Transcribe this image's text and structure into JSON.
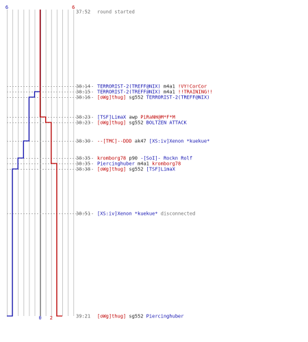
{
  "chart_data": {
    "type": "line",
    "title": "",
    "team_colors": {
      "ct": "#1010b0",
      "t": "#c00000",
      "neutral": "#202020",
      "info": "#707070"
    },
    "start_counts": {
      "ct": "6",
      "t": "6"
    },
    "end_counts": {
      "ct": "0",
      "t": "2"
    },
    "x_range": [
      0,
      10
    ],
    "ct_alive": [
      6,
      6,
      5,
      4,
      4,
      4,
      3,
      2,
      2,
      1,
      1,
      0
    ],
    "t_alive": [
      6,
      6,
      6,
      6,
      5,
      4,
      4,
      4,
      3,
      3,
      3,
      2
    ],
    "events": [
      {
        "time": "37:52",
        "segments": [
          {
            "text": "round started",
            "color": "info"
          }
        ]
      },
      {
        "time": "38:14",
        "segments": [
          {
            "text": "TERRORIST-2(TREFF@NIX)",
            "color": "ct"
          },
          {
            "text": " m4a1 ",
            "color": "neutral"
          },
          {
            "text": "!VY!CorCor",
            "color": "t"
          }
        ]
      },
      {
        "time": "38:15",
        "segments": [
          {
            "text": "TERRORIST-2(TREFF@NIX)",
            "color": "ct"
          },
          {
            "text": " m4a1 ",
            "color": "neutral"
          },
          {
            "text": "!!TRAINING!!",
            "color": "t"
          }
        ]
      },
      {
        "time": "38:16",
        "segments": [
          {
            "text": "[oWg]thug]",
            "color": "t"
          },
          {
            "text": " sg552 ",
            "color": "neutral"
          },
          {
            "text": "TERRORIST-2(TREFF@NIX)",
            "color": "ct"
          }
        ]
      },
      {
        "time": "38:23",
        "segments": [
          {
            "text": "[TSF]LimaX",
            "color": "ct"
          },
          {
            "text": " awp ",
            "color": "neutral"
          },
          {
            "text": "PiRaNH@M*F*M",
            "color": "t"
          }
        ]
      },
      {
        "time": "38:23",
        "segments": [
          {
            "text": "[oWg]thug]",
            "color": "t"
          },
          {
            "text": " sg552 ",
            "color": "neutral"
          },
          {
            "text": "BOLTZEN ATTACK",
            "color": "ct"
          }
        ]
      },
      {
        "time": "38:30",
        "segments": [
          {
            "text": "--[TMC]--DDD",
            "color": "t"
          },
          {
            "text": " ak47 ",
            "color": "neutral"
          },
          {
            "text": "[XS:iv]Xenon *kuekue*",
            "color": "ct"
          }
        ]
      },
      {
        "time": "38:35",
        "segments": [
          {
            "text": "kromborg78",
            "color": "t"
          },
          {
            "text": " p90 ",
            "color": "neutral"
          },
          {
            "text": "-[SoI]- Rockn Rolf",
            "color": "ct"
          }
        ]
      },
      {
        "time": "38:35",
        "segments": [
          {
            "text": "Piercinghuber",
            "color": "ct"
          },
          {
            "text": " m4a1 ",
            "color": "neutral"
          },
          {
            "text": "kromborg78",
            "color": "t"
          }
        ]
      },
      {
        "time": "38:38",
        "segments": [
          {
            "text": "[oWg]thug]",
            "color": "t"
          },
          {
            "text": " sg552 ",
            "color": "neutral"
          },
          {
            "text": "[TSF]LimaX",
            "color": "ct"
          }
        ]
      },
      {
        "time": "38:51",
        "segments": [
          {
            "text": "[XS:iv]Xenon *kuekue*",
            "color": "ct"
          },
          {
            "text": " disconnected",
            "color": "info"
          }
        ]
      },
      {
        "time": "39:21",
        "segments": [
          {
            "text": "[oWg]thug]",
            "color": "t"
          },
          {
            "text": " sg552 ",
            "color": "neutral"
          },
          {
            "text": "Piercinghuber",
            "color": "ct"
          }
        ]
      }
    ]
  }
}
